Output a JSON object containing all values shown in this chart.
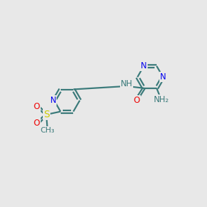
{
  "bg_color": "#e8e8e8",
  "bond_color": "#3a7a7a",
  "N_color": "#0000ee",
  "O_color": "#ee0000",
  "S_color": "#cccc00",
  "C_color": "#3a7a7a",
  "lw": 1.6,
  "dbo": 0.07,
  "fs": 8.5,
  "xlim": [
    0,
    10
  ],
  "ylim": [
    0,
    10
  ]
}
